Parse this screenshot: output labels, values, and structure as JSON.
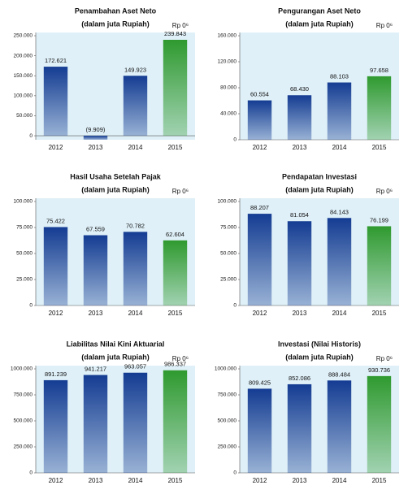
{
  "chart_data": [
    {
      "type": "bar",
      "title": "Penambahan Aset Neto",
      "subtitle": "(dalam juta Rupiah)",
      "unit": "Rp 0⁶",
      "categories": [
        "2012",
        "2013",
        "2014",
        "2015"
      ],
      "values": [
        172621,
        -9909,
        149923,
        239843
      ],
      "value_labels": [
        "172.621",
        "(9.909)",
        "149.923",
        "239.843"
      ],
      "colors": [
        "#143c92",
        "#143c92",
        "#143c92",
        "#2f9a2f"
      ],
      "ylim": [
        -10000,
        250000
      ],
      "yticks": [
        0,
        {
          "value": 50000,
          "label": "50.000"
        },
        {
          "value": 100000,
          "label": "100.000"
        },
        {
          "value": 150000,
          "label": "150.000"
        },
        {
          "value": 200000,
          "label": "200.000"
        },
        {
          "value": 250000,
          "label": "250.000"
        }
      ]
    },
    {
      "type": "bar",
      "title": "Pengurangan Aset Neto",
      "subtitle": "(dalam juta Rupiah)",
      "unit": "Rp 0⁶",
      "categories": [
        "2012",
        "2013",
        "2014",
        "2015"
      ],
      "values": [
        60554,
        68430,
        88103,
        97658
      ],
      "value_labels": [
        "60.554",
        "68.430",
        "88.103",
        "97.658"
      ],
      "colors": [
        "#143c92",
        "#143c92",
        "#143c92",
        "#2f9a2f"
      ],
      "ylim": [
        0,
        160000
      ],
      "yticks": [
        0,
        {
          "value": 40000,
          "label": "40.000"
        },
        {
          "value": 80000,
          "label": "80.000"
        },
        {
          "value": 120000,
          "label": "120.000"
        },
        {
          "value": 160000,
          "label": "160.000"
        }
      ]
    },
    {
      "type": "bar",
      "title": "Hasil Usaha Setelah Pajak",
      "subtitle": "(dalam juta Rupiah)",
      "unit": "Rp 0⁶",
      "categories": [
        "2012",
        "2013",
        "2014",
        "2015"
      ],
      "values": [
        75422,
        67559,
        70782,
        62604
      ],
      "value_labels": [
        "75.422",
        "67.559",
        "70.782",
        "62.604"
      ],
      "colors": [
        "#143c92",
        "#143c92",
        "#143c92",
        "#2f9a2f"
      ],
      "ylim": [
        0,
        100000
      ],
      "yticks": [
        0,
        {
          "value": 25000,
          "label": "25.000"
        },
        {
          "value": 50000,
          "label": "50.000"
        },
        {
          "value": 75000,
          "label": "75.000"
        },
        {
          "value": 100000,
          "label": "100.000"
        }
      ]
    },
    {
      "type": "bar",
      "title": "Pendapatan Investasi",
      "subtitle": "(dalam juta Rupiah)",
      "unit": "Rp 0⁶",
      "categories": [
        "2012",
        "2013",
        "2014",
        "2015"
      ],
      "values": [
        88207,
        81054,
        84143,
        76199
      ],
      "value_labels": [
        "88.207",
        "81.054",
        "84.143",
        "76.199"
      ],
      "colors": [
        "#143c92",
        "#143c92",
        "#143c92",
        "#2f9a2f"
      ],
      "ylim": [
        0,
        100000
      ],
      "yticks": [
        0,
        {
          "value": 25000,
          "label": "25.000"
        },
        {
          "value": 50000,
          "label": "50.000"
        },
        {
          "value": 75000,
          "label": "75.000"
        },
        {
          "value": 100000,
          "label": "100.000"
        }
      ]
    },
    {
      "type": "bar",
      "title": "Liabilitas  Nilai Kini Aktuarial",
      "subtitle": "(dalam juta Rupiah)",
      "unit": "Rp 0⁶",
      "categories": [
        "2012",
        "2013",
        "2014",
        "2015"
      ],
      "values": [
        891239,
        941217,
        963057,
        986337
      ],
      "value_labels": [
        "891.239",
        "941.217",
        "963.057",
        "986.337"
      ],
      "colors": [
        "#143c92",
        "#143c92",
        "#143c92",
        "#2f9a2f"
      ],
      "ylim": [
        0,
        1000000
      ],
      "yticks": [
        0,
        {
          "value": 250000,
          "label": "250.000"
        },
        {
          "value": 500000,
          "label": "500.000"
        },
        {
          "value": 750000,
          "label": "750.000"
        },
        {
          "value": 1000000,
          "label": "1000.000"
        }
      ]
    },
    {
      "type": "bar",
      "title": "Investasi (Nilai Historis)",
      "subtitle": "(dalam juta Rupiah)",
      "unit": "Rp 0⁶",
      "categories": [
        "2012",
        "2013",
        "2014",
        "2015"
      ],
      "values": [
        809425,
        852086,
        888484,
        930736
      ],
      "value_labels": [
        "809.425",
        "852.086",
        "888.484",
        "930.736"
      ],
      "colors": [
        "#143c92",
        "#143c92",
        "#143c92",
        "#2f9a2f"
      ],
      "ylim": [
        0,
        1000000
      ],
      "yticks": [
        0,
        {
          "value": 250000,
          "label": "250.000"
        },
        {
          "value": 500000,
          "label": "500.000"
        },
        {
          "value": 750000,
          "label": "750.000"
        },
        {
          "value": 1000000,
          "label": "1000.000"
        }
      ]
    }
  ]
}
